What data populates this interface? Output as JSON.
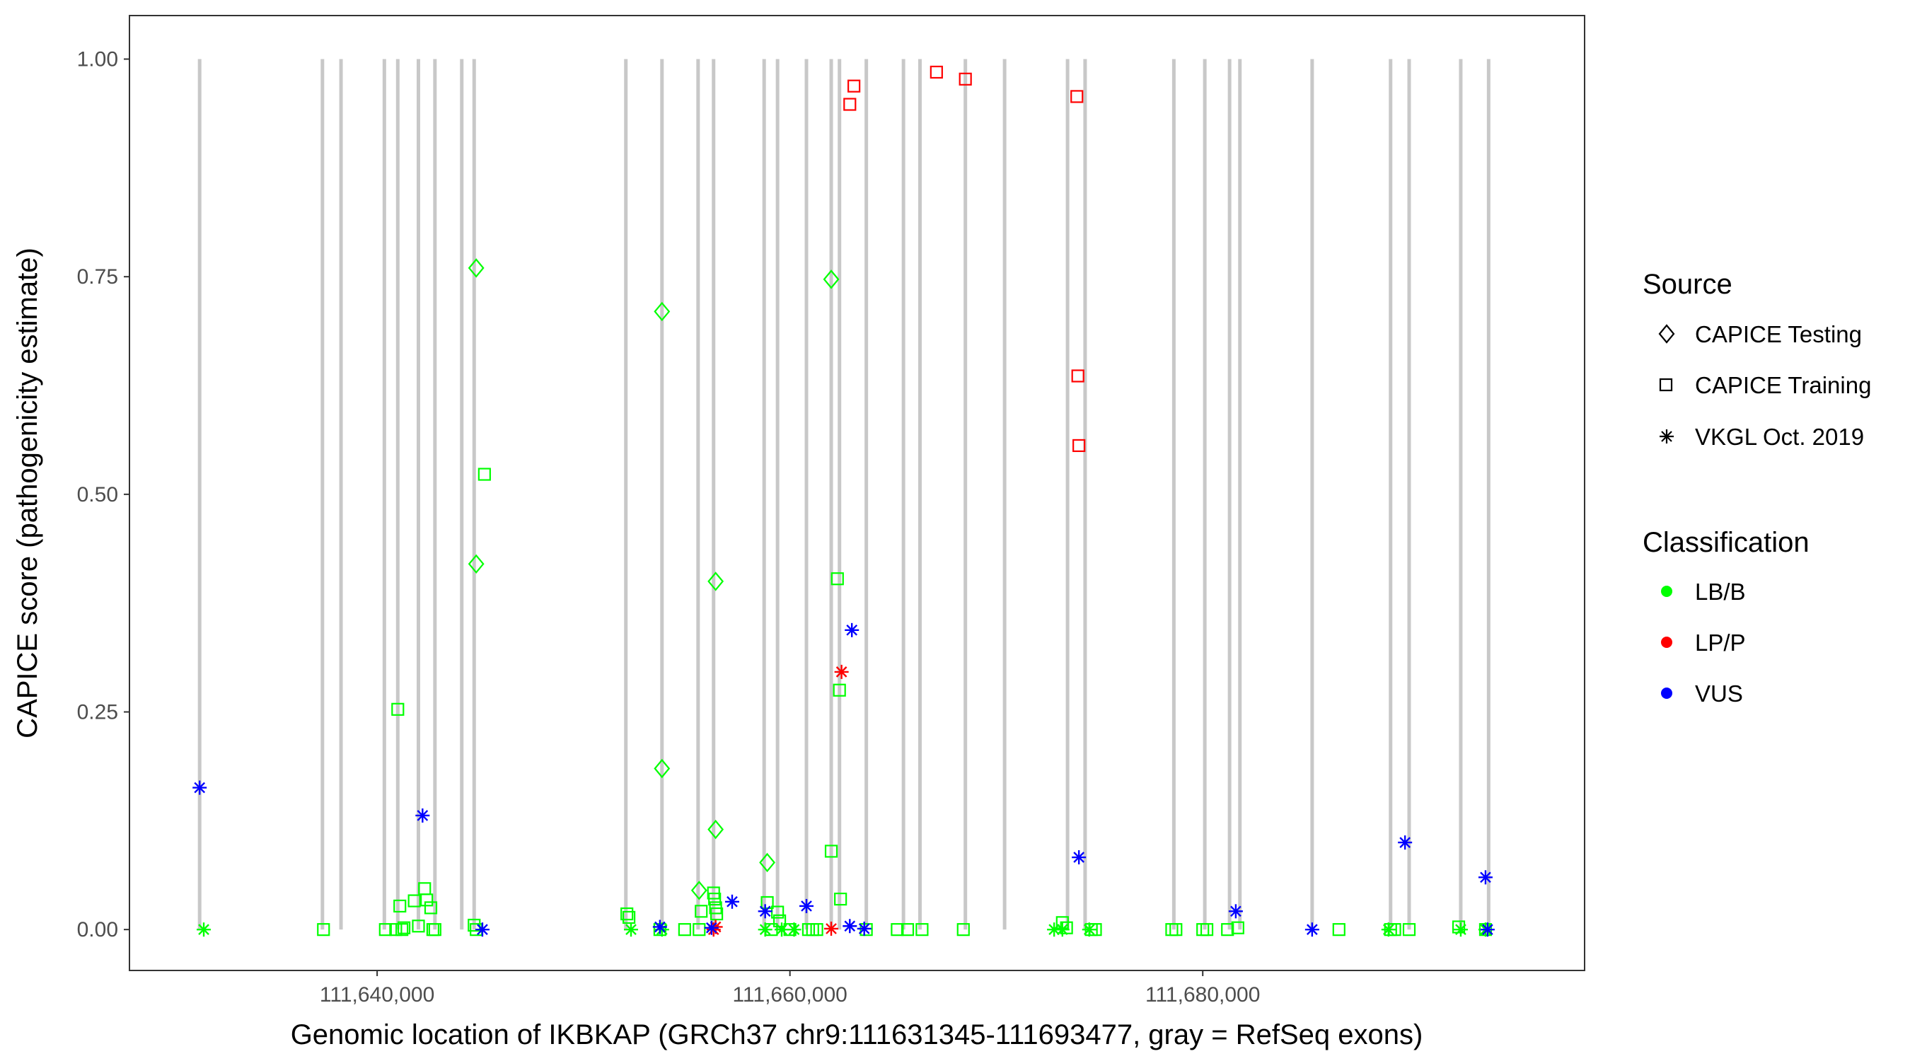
{
  "chart_data": {
    "type": "scatter",
    "title": "",
    "xlabel": "Genomic location of IKBKAP (GRCh37 chr9:111631345-111693477, gray = RefSeq exons)",
    "ylabel": "CAPICE score (pathogenicity estimate)",
    "xlim": [
      111628000,
      111698500
    ],
    "ylim": [
      -0.047,
      1.05
    ],
    "x_ticks": [
      111640000,
      111660000,
      111680000
    ],
    "x_tick_labels": [
      "111,640,000",
      "111,660,000",
      "111,680,000"
    ],
    "y_ticks": [
      0,
      0.25,
      0.5,
      0.75,
      1.0
    ],
    "y_tick_labels": [
      "0.00",
      "0.25",
      "0.50",
      "0.75",
      "1.00"
    ],
    "grid": false,
    "exon_color": "#c8c8c8",
    "exons": [
      111631400,
      111637350,
      111638250,
      111640350,
      111641000,
      111642000,
      111642800,
      111644100,
      111644700,
      111652050,
      111653800,
      111655550,
      111656300,
      111658750,
      111659400,
      111660800,
      111662000,
      111662400,
      111663700,
      111665500,
      111666300,
      111668500,
      111670400,
      111673450,
      111674300,
      111678600,
      111680100,
      111681300,
      111681800,
      111685300,
      111689100,
      111690000,
      111692500,
      111693850
    ],
    "legend_position": "right",
    "legend": {
      "source_title": "Source",
      "source_items": [
        {
          "label": "CAPICE Testing",
          "shape": "diamond"
        },
        {
          "label": "CAPICE Training",
          "shape": "square"
        },
        {
          "label": "VKGL Oct. 2019",
          "shape": "asterisk"
        }
      ],
      "class_title": "Classification",
      "class_items": [
        {
          "label": "LB/B",
          "color": "#00ff00"
        },
        {
          "label": "LP/P",
          "color": "#ff0000"
        },
        {
          "label": "VUS",
          "color": "#0000ff"
        }
      ]
    },
    "series": [
      {
        "source": "CAPICE Testing",
        "classification": "LB/B",
        "x": [
          111644800,
          111644800,
          111653800,
          111653800,
          111655600,
          111656400,
          111656400,
          111658900,
          111662000
        ],
        "y": [
          0.76,
          0.42,
          0.71,
          0.185,
          0.045,
          0.4,
          0.115,
          0.077,
          0.747
        ]
      },
      {
        "source": "CAPICE Training",
        "classification": "LB/B",
        "x": [
          111637400,
          111640400,
          111640900,
          111641000,
          111641100,
          111641200,
          111641300,
          111641800,
          111642000,
          111642300,
          111642400,
          111642600,
          111642700,
          111642800,
          111644700,
          111644800,
          111645200,
          111652100,
          111652200,
          111653700,
          111654900,
          111655600,
          111655700,
          111656300,
          111656350,
          111656400,
          111656450,
          111658900,
          111659100,
          111659400,
          111659500,
          111660000,
          111660900,
          111661100,
          111661300,
          111662000,
          111662300,
          111662400,
          111662450,
          111663700,
          111665200,
          111665700,
          111666400,
          111668400,
          111673200,
          111673400,
          111674600,
          111674800,
          111678500,
          111678700,
          111680000,
          111680200,
          111681200,
          111681700,
          111686600,
          111689100,
          111689300,
          111690000,
          111692400,
          111693700
        ],
        "y": [
          0,
          0,
          0,
          0.253,
          0.027,
          0,
          0.002,
          0.033,
          0.004,
          0.047,
          0.034,
          0.025,
          0,
          0,
          0.005,
          0,
          0.523,
          0.018,
          0.014,
          0,
          0,
          0,
          0.021,
          0.042,
          0.035,
          0.025,
          0.018,
          0.031,
          0,
          0.02,
          0.01,
          0,
          0,
          0,
          0,
          0.09,
          0.403,
          0.275,
          0.035,
          0,
          0,
          0,
          0,
          0,
          0.008,
          0.002,
          0,
          0,
          0,
          0,
          0,
          0,
          0,
          0.002,
          0,
          0,
          0,
          0,
          0.003,
          0
        ]
      },
      {
        "source": "CAPICE Training",
        "classification": "LP/P",
        "x": [
          111662900,
          111663100,
          111667100,
          111668500,
          111673900,
          111673950,
          111674000
        ],
        "y": [
          0.948,
          0.969,
          0.985,
          0.977,
          0.957,
          0.636,
          0.556
        ]
      },
      {
        "source": "VKGL Oct. 2019",
        "classification": "LB/B",
        "x": [
          111631600,
          111652300,
          111653800,
          111658800,
          111659600,
          111660200,
          111672800,
          111673200,
          111674500,
          111689000,
          111692500,
          111693700
        ],
        "y": [
          0,
          0,
          0,
          0,
          0,
          0,
          0,
          0,
          0,
          0,
          0,
          0
        ]
      },
      {
        "source": "VKGL Oct. 2019",
        "classification": "LP/P",
        "x": [
          111656300,
          111656400,
          111662000,
          111662500
        ],
        "y": [
          0,
          0.003,
          0.001,
          0.296
        ]
      },
      {
        "source": "VKGL Oct. 2019",
        "classification": "VUS",
        "x": [
          111631400,
          111642200,
          111645100,
          111653700,
          111656200,
          111657200,
          111658800,
          111660800,
          111662900,
          111663000,
          111663600,
          111674000,
          111681600,
          111685300,
          111689800,
          111693700,
          111693800
        ],
        "y": [
          0.163,
          0.131,
          0,
          0.003,
          0.002,
          0.032,
          0.021,
          0.027,
          0.004,
          0.344,
          0.001,
          0.083,
          0.021,
          0,
          0.1,
          0.06,
          0
        ]
      }
    ]
  }
}
